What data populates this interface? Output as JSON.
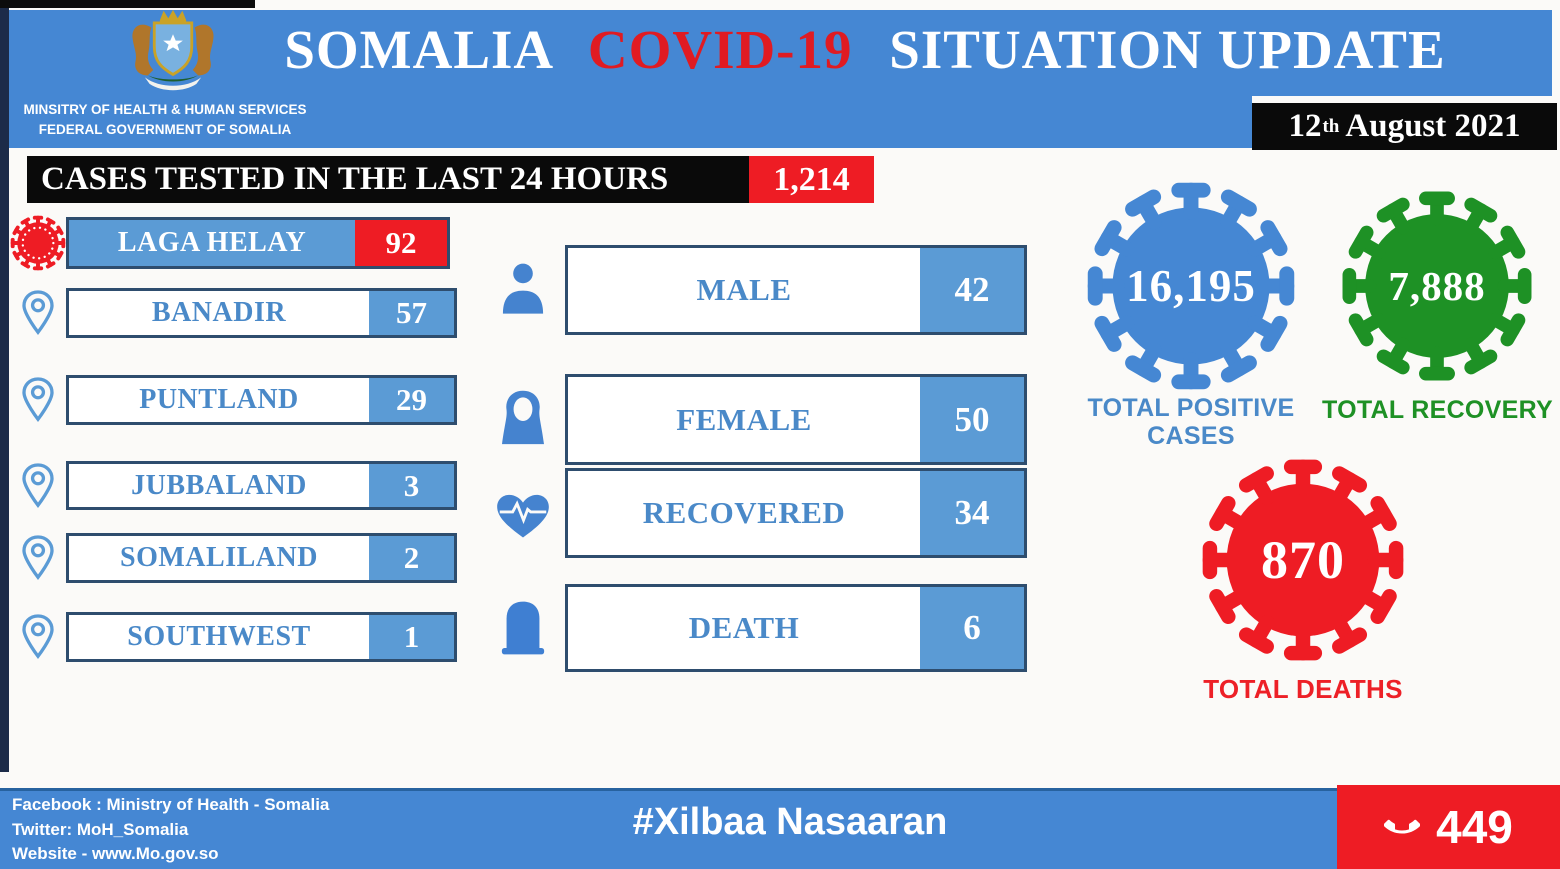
{
  "header": {
    "title_country": "SOMALIA",
    "title_covid": "COVID-19",
    "title_rest": "SITUATION UPDATE",
    "ministry_line1": "MINSITRY OF HEALTH & HUMAN SERVICES",
    "ministry_line2": "FEDERAL GOVERNMENT OF SOMALIA",
    "date_day": "12",
    "date_suffix": "th",
    "date_rest": "August 2021"
  },
  "tested_banner": {
    "label": "CASES TESTED IN THE LAST 24 HOURS",
    "value": "1,214"
  },
  "regions": [
    {
      "name": "LAGA HELAY",
      "value": "92"
    },
    {
      "name": "BANADIR",
      "value": "57"
    },
    {
      "name": "PUNTLAND",
      "value": "29"
    },
    {
      "name": "JUBBALAND",
      "value": "3"
    },
    {
      "name": "SOMALILAND",
      "value": "2"
    },
    {
      "name": "SOUTHWEST",
      "value": "1"
    }
  ],
  "demographics": [
    {
      "label": "MALE",
      "value": "42"
    },
    {
      "label": "FEMALE",
      "value": "50"
    },
    {
      "label": "RECOVERED",
      "value": "34"
    },
    {
      "label": "DEATH",
      "value": "6"
    }
  ],
  "totals": {
    "positive": {
      "value": "16,195",
      "label": "TOTAL POSITIVE CASES"
    },
    "recovery": {
      "value": "7,888",
      "label": "TOTAL RECOVERY"
    },
    "deaths": {
      "value": "870",
      "label": "TOTAL DEATHS"
    }
  },
  "footer": {
    "facebook": "Facebook : Ministry of Health - Somalia",
    "twitter": "Twitter: MoH_Somalia",
    "website": "Website - www.Mo.gov.so",
    "hashtag": "#Xilbaa Nasaaran",
    "hotline": "449"
  },
  "colors": {
    "primary_blue": "#4587d3",
    "value_blue": "#5b9bd5",
    "label_blue": "#4a89c8",
    "alert_red": "#ee1c24",
    "success_green": "#1e9125",
    "border_navy": "#2e4d6e",
    "stripe_navy": "#1c2b49"
  },
  "chart_data": [
    {
      "type": "bar",
      "title": "Cases tested in the last 24 hours",
      "total_tested": 1214,
      "categories": [
        "LAGA HELAY",
        "BANADIR",
        "PUNTLAND",
        "JUBBALAND",
        "SOMALILAND",
        "SOUTHWEST"
      ],
      "values": [
        92,
        57,
        29,
        3,
        2,
        1
      ]
    },
    {
      "type": "table",
      "title": "New case breakdown",
      "categories": [
        "MALE",
        "FEMALE",
        "RECOVERED",
        "DEATH"
      ],
      "values": [
        42,
        50,
        34,
        6
      ]
    },
    {
      "type": "table",
      "title": "Cumulative totals",
      "categories": [
        "TOTAL POSITIVE CASES",
        "TOTAL RECOVERY",
        "TOTAL DEATHS"
      ],
      "values": [
        16195,
        7888,
        870
      ]
    }
  ]
}
